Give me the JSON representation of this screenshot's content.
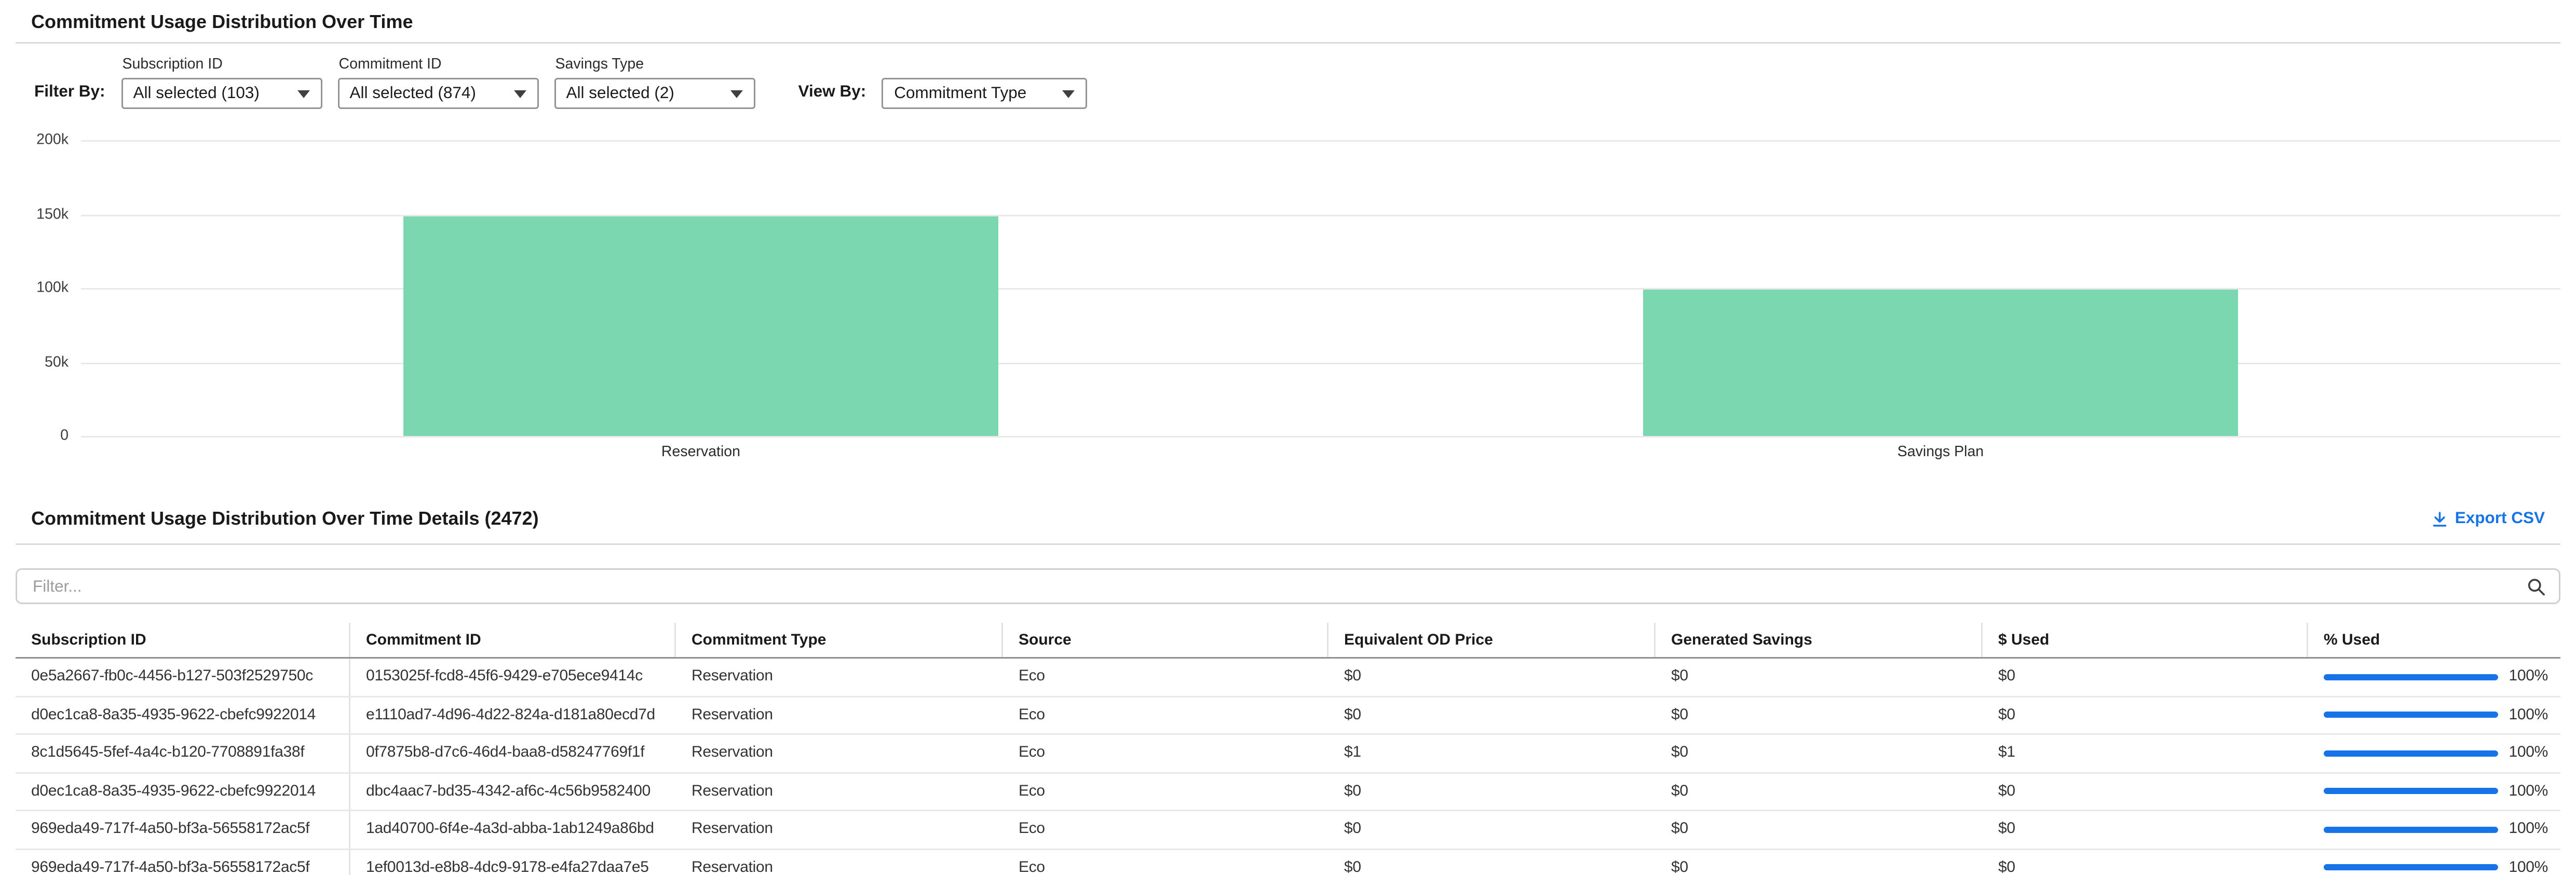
{
  "page": {
    "title": "Commitment Usage Distribution Over Time"
  },
  "filters": {
    "filter_by_label": "Filter By:",
    "view_by_label": "View By:",
    "dropdowns": [
      {
        "label": "Subscription ID",
        "value": "All selected (103)"
      },
      {
        "label": "Commitment ID",
        "value": "All selected (874)"
      },
      {
        "label": "Savings Type",
        "value": "All selected (2)"
      }
    ],
    "view_by_value": "Commitment Type"
  },
  "chart_data": {
    "type": "bar",
    "categories": [
      "Reservation",
      "Savings Plan"
    ],
    "values": [
      148000,
      99000
    ],
    "title": "",
    "xlabel": "",
    "ylabel": "",
    "ylim": [
      0,
      200000
    ],
    "ytick_labels": [
      "200k",
      "150k",
      "100k",
      "50k",
      "0"
    ],
    "grid": true,
    "legend": "none",
    "bar_color": "#7bd7b0"
  },
  "details": {
    "title": "Commitment Usage Distribution Over Time Details (2472)",
    "export_csv_label": "Export CSV",
    "filter_placeholder": "Filter...",
    "filter_value": "",
    "columns": [
      "Subscription ID",
      "Commitment ID",
      "Commitment Type",
      "Source",
      "Equivalent OD Price",
      "Generated Savings",
      "$ Used",
      "% Used"
    ],
    "rows": [
      {
        "subscription_id": "0e5a2667-fb0c-4456-b127-503f2529750c",
        "commitment_id": "0153025f-fcd8-45f6-9429-e705ece9414c",
        "commitment_type": "Reservation",
        "source": "Eco",
        "equivalent_od_price": "$0",
        "generated_savings": "$0",
        "used": "$0",
        "pct_used": 100,
        "pct_used_label": "100%"
      },
      {
        "subscription_id": "d0ec1ca8-8a35-4935-9622-cbefc9922014",
        "commitment_id": "e1110ad7-4d96-4d22-824a-d181a80ecd7d",
        "commitment_type": "Reservation",
        "source": "Eco",
        "equivalent_od_price": "$0",
        "generated_savings": "$0",
        "used": "$0",
        "pct_used": 100,
        "pct_used_label": "100%"
      },
      {
        "subscription_id": "8c1d5645-5fef-4a4c-b120-7708891fa38f",
        "commitment_id": "0f7875b8-d7c6-46d4-baa8-d58247769f1f",
        "commitment_type": "Reservation",
        "source": "Eco",
        "equivalent_od_price": "$1",
        "generated_savings": "$0",
        "used": "$1",
        "pct_used": 100,
        "pct_used_label": "100%"
      },
      {
        "subscription_id": "d0ec1ca8-8a35-4935-9622-cbefc9922014",
        "commitment_id": "dbc4aac7-bd35-4342-af6c-4c56b9582400",
        "commitment_type": "Reservation",
        "source": "Eco",
        "equivalent_od_price": "$0",
        "generated_savings": "$0",
        "used": "$0",
        "pct_used": 100,
        "pct_used_label": "100%"
      },
      {
        "subscription_id": "969eda49-717f-4a50-bf3a-56558172ac5f",
        "commitment_id": "1ad40700-6f4e-4a3d-abba-1ab1249a86bd",
        "commitment_type": "Reservation",
        "source": "Eco",
        "equivalent_od_price": "$0",
        "generated_savings": "$0",
        "used": "$0",
        "pct_used": 100,
        "pct_used_label": "100%"
      },
      {
        "subscription_id": "969eda49-717f-4a50-bf3a-56558172ac5f",
        "commitment_id": "1ef0013d-e8b8-4dc9-9178-e4fa27daa7e5",
        "commitment_type": "Reservation",
        "source": "Eco",
        "equivalent_od_price": "$0",
        "generated_savings": "$0",
        "used": "$0",
        "pct_used": 100,
        "pct_used_label": "100%"
      }
    ]
  },
  "colors": {
    "accent_blue": "#1673e8",
    "bar_green": "#7bd7b0"
  }
}
